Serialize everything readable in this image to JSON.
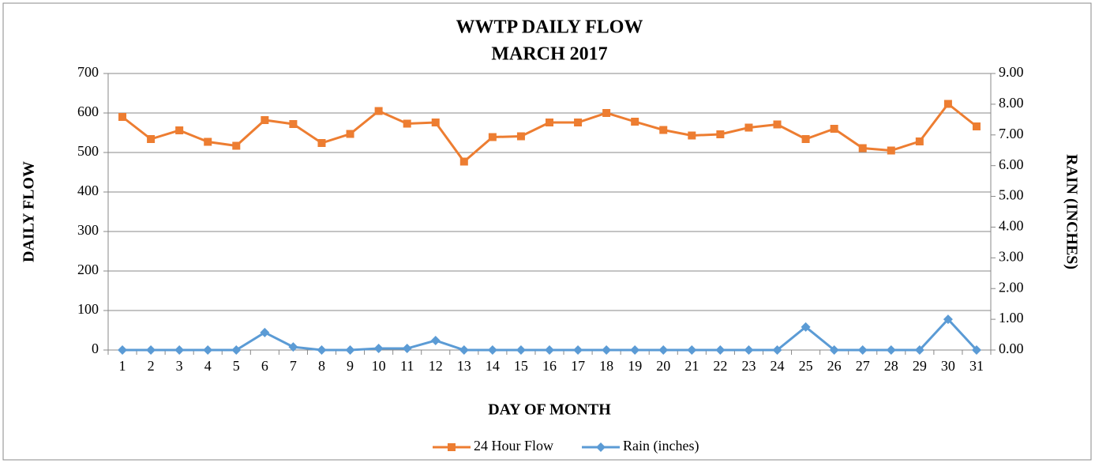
{
  "chart_data": {
    "type": "line",
    "title": "WWTP DAILY FLOW",
    "subtitle": "MARCH 2017",
    "x_label": "DAY OF MONTH",
    "y_label": "DAILY FLOW",
    "y2_label": "RAIN (INCHES)",
    "categories": [
      "1",
      "2",
      "3",
      "4",
      "5",
      "6",
      "7",
      "8",
      "9",
      "10",
      "11",
      "12",
      "13",
      "14",
      "15",
      "16",
      "17",
      "18",
      "19",
      "20",
      "21",
      "22",
      "23",
      "24",
      "25",
      "26",
      "27",
      "28",
      "29",
      "30",
      "31"
    ],
    "series": [
      {
        "name": "24 Hour Flow",
        "color": "#ED7D31",
        "marker": "square",
        "values": [
          590,
          534,
          556,
          527,
          517,
          582,
          572,
          524,
          547,
          605,
          573,
          576,
          477,
          539,
          541,
          576,
          576,
          600,
          578,
          557,
          543,
          546,
          563,
          571,
          534,
          560,
          511,
          505,
          528,
          623,
          566
        ]
      },
      {
        "name": "Rain (inches)",
        "color": "#5B9BD5",
        "marker": "diamond",
        "axis": "y2",
        "values": [
          0,
          0,
          0,
          0,
          0,
          0.57,
          0.1,
          0,
          0,
          0.05,
          0.05,
          0.31,
          0,
          0,
          0,
          0,
          0,
          0,
          0,
          0,
          0,
          0,
          0,
          0,
          0.75,
          0,
          0,
          0,
          0,
          1.0,
          0
        ]
      }
    ],
    "ylim": [
      0,
      700
    ],
    "yticks": [
      0,
      100,
      200,
      300,
      400,
      500,
      600,
      700
    ],
    "y2lim": [
      0,
      9
    ],
    "y2ticks": [
      {
        "value": 0,
        "label": "0.00"
      },
      {
        "value": 1,
        "label": "1.00"
      },
      {
        "value": 2,
        "label": "2.00"
      },
      {
        "value": 3,
        "label": "3.00"
      },
      {
        "value": 4,
        "label": "4.00"
      },
      {
        "value": 5,
        "label": "5.00"
      },
      {
        "value": 6,
        "label": "6.00"
      },
      {
        "value": 7,
        "label": "7.00"
      },
      {
        "value": 8,
        "label": "8.00"
      },
      {
        "value": 9,
        "label": "9.00"
      }
    ],
    "grid": true,
    "legend": "bottom"
  }
}
